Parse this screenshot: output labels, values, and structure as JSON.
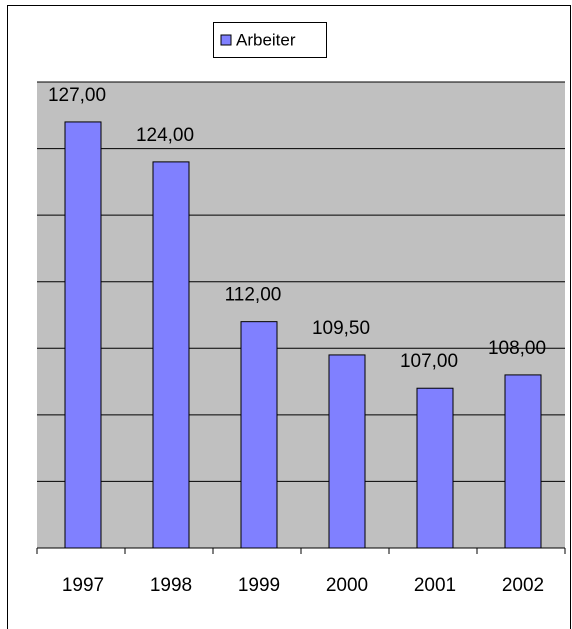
{
  "chart_data": {
    "type": "bar",
    "categories": [
      "1997",
      "1998",
      "1999",
      "2000",
      "2001",
      "2002"
    ],
    "series": [
      {
        "name": "Arbeiter",
        "color": "#8080ff",
        "values": [
          127,
          124,
          112,
          109.5,
          107,
          108
        ],
        "value_labels": [
          "127,00",
          "124,00",
          "112,00",
          "109,50",
          "107,00",
          "108,00"
        ]
      }
    ],
    "ylim": [
      95,
      130
    ],
    "yticks": [
      95,
      100,
      105,
      110,
      115,
      120,
      125,
      130
    ],
    "grid": true,
    "plot_background": "#c0c0c0",
    "legend": "top"
  }
}
